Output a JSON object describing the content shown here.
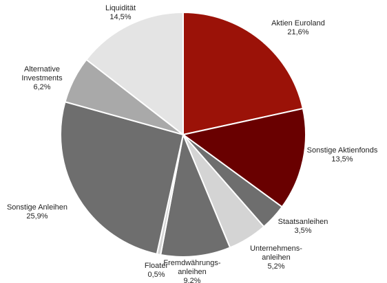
{
  "chart_data": {
    "type": "pie",
    "title": "",
    "start_angle_deg": 0,
    "direction": "clockwise",
    "slices": [
      {
        "label_lines": [
          "Aktien Euroland"
        ],
        "value_text": "21,6%",
        "value": 21.6,
        "color": "#9b1208"
      },
      {
        "label_lines": [
          "Sonstige Aktienfonds"
        ],
        "value_text": "13,5%",
        "value": 13.5,
        "color": "#690000"
      },
      {
        "label_lines": [
          "Staatsanleihen"
        ],
        "value_text": "3,5%",
        "value": 3.5,
        "color": "#6e6e6e"
      },
      {
        "label_lines": [
          "Unternehmens-",
          "anleihen"
        ],
        "value_text": "5,2%",
        "value": 5.2,
        "color": "#d4d4d4"
      },
      {
        "label_lines": [
          "Fremdwährungs-",
          "anleihen"
        ],
        "value_text": "9,2%",
        "value": 9.2,
        "color": "#6e6e6e"
      },
      {
        "label_lines": [
          "Floater"
        ],
        "value_text": "0,5%",
        "value": 0.5,
        "color": "#d4d4d4"
      },
      {
        "label_lines": [
          "Sonstige Anleihen"
        ],
        "value_text": "25,9%",
        "value": 25.9,
        "color": "#6e6e6e"
      },
      {
        "label_lines": [
          "Alternative",
          "Investments"
        ],
        "value_text": "6,2%",
        "value": 6.2,
        "color": "#a9a9a9"
      },
      {
        "label_lines": [
          "Liquidität"
        ],
        "value_text": "14,5%",
        "value": 14.5,
        "color": "#e4e4e4"
      }
    ]
  }
}
